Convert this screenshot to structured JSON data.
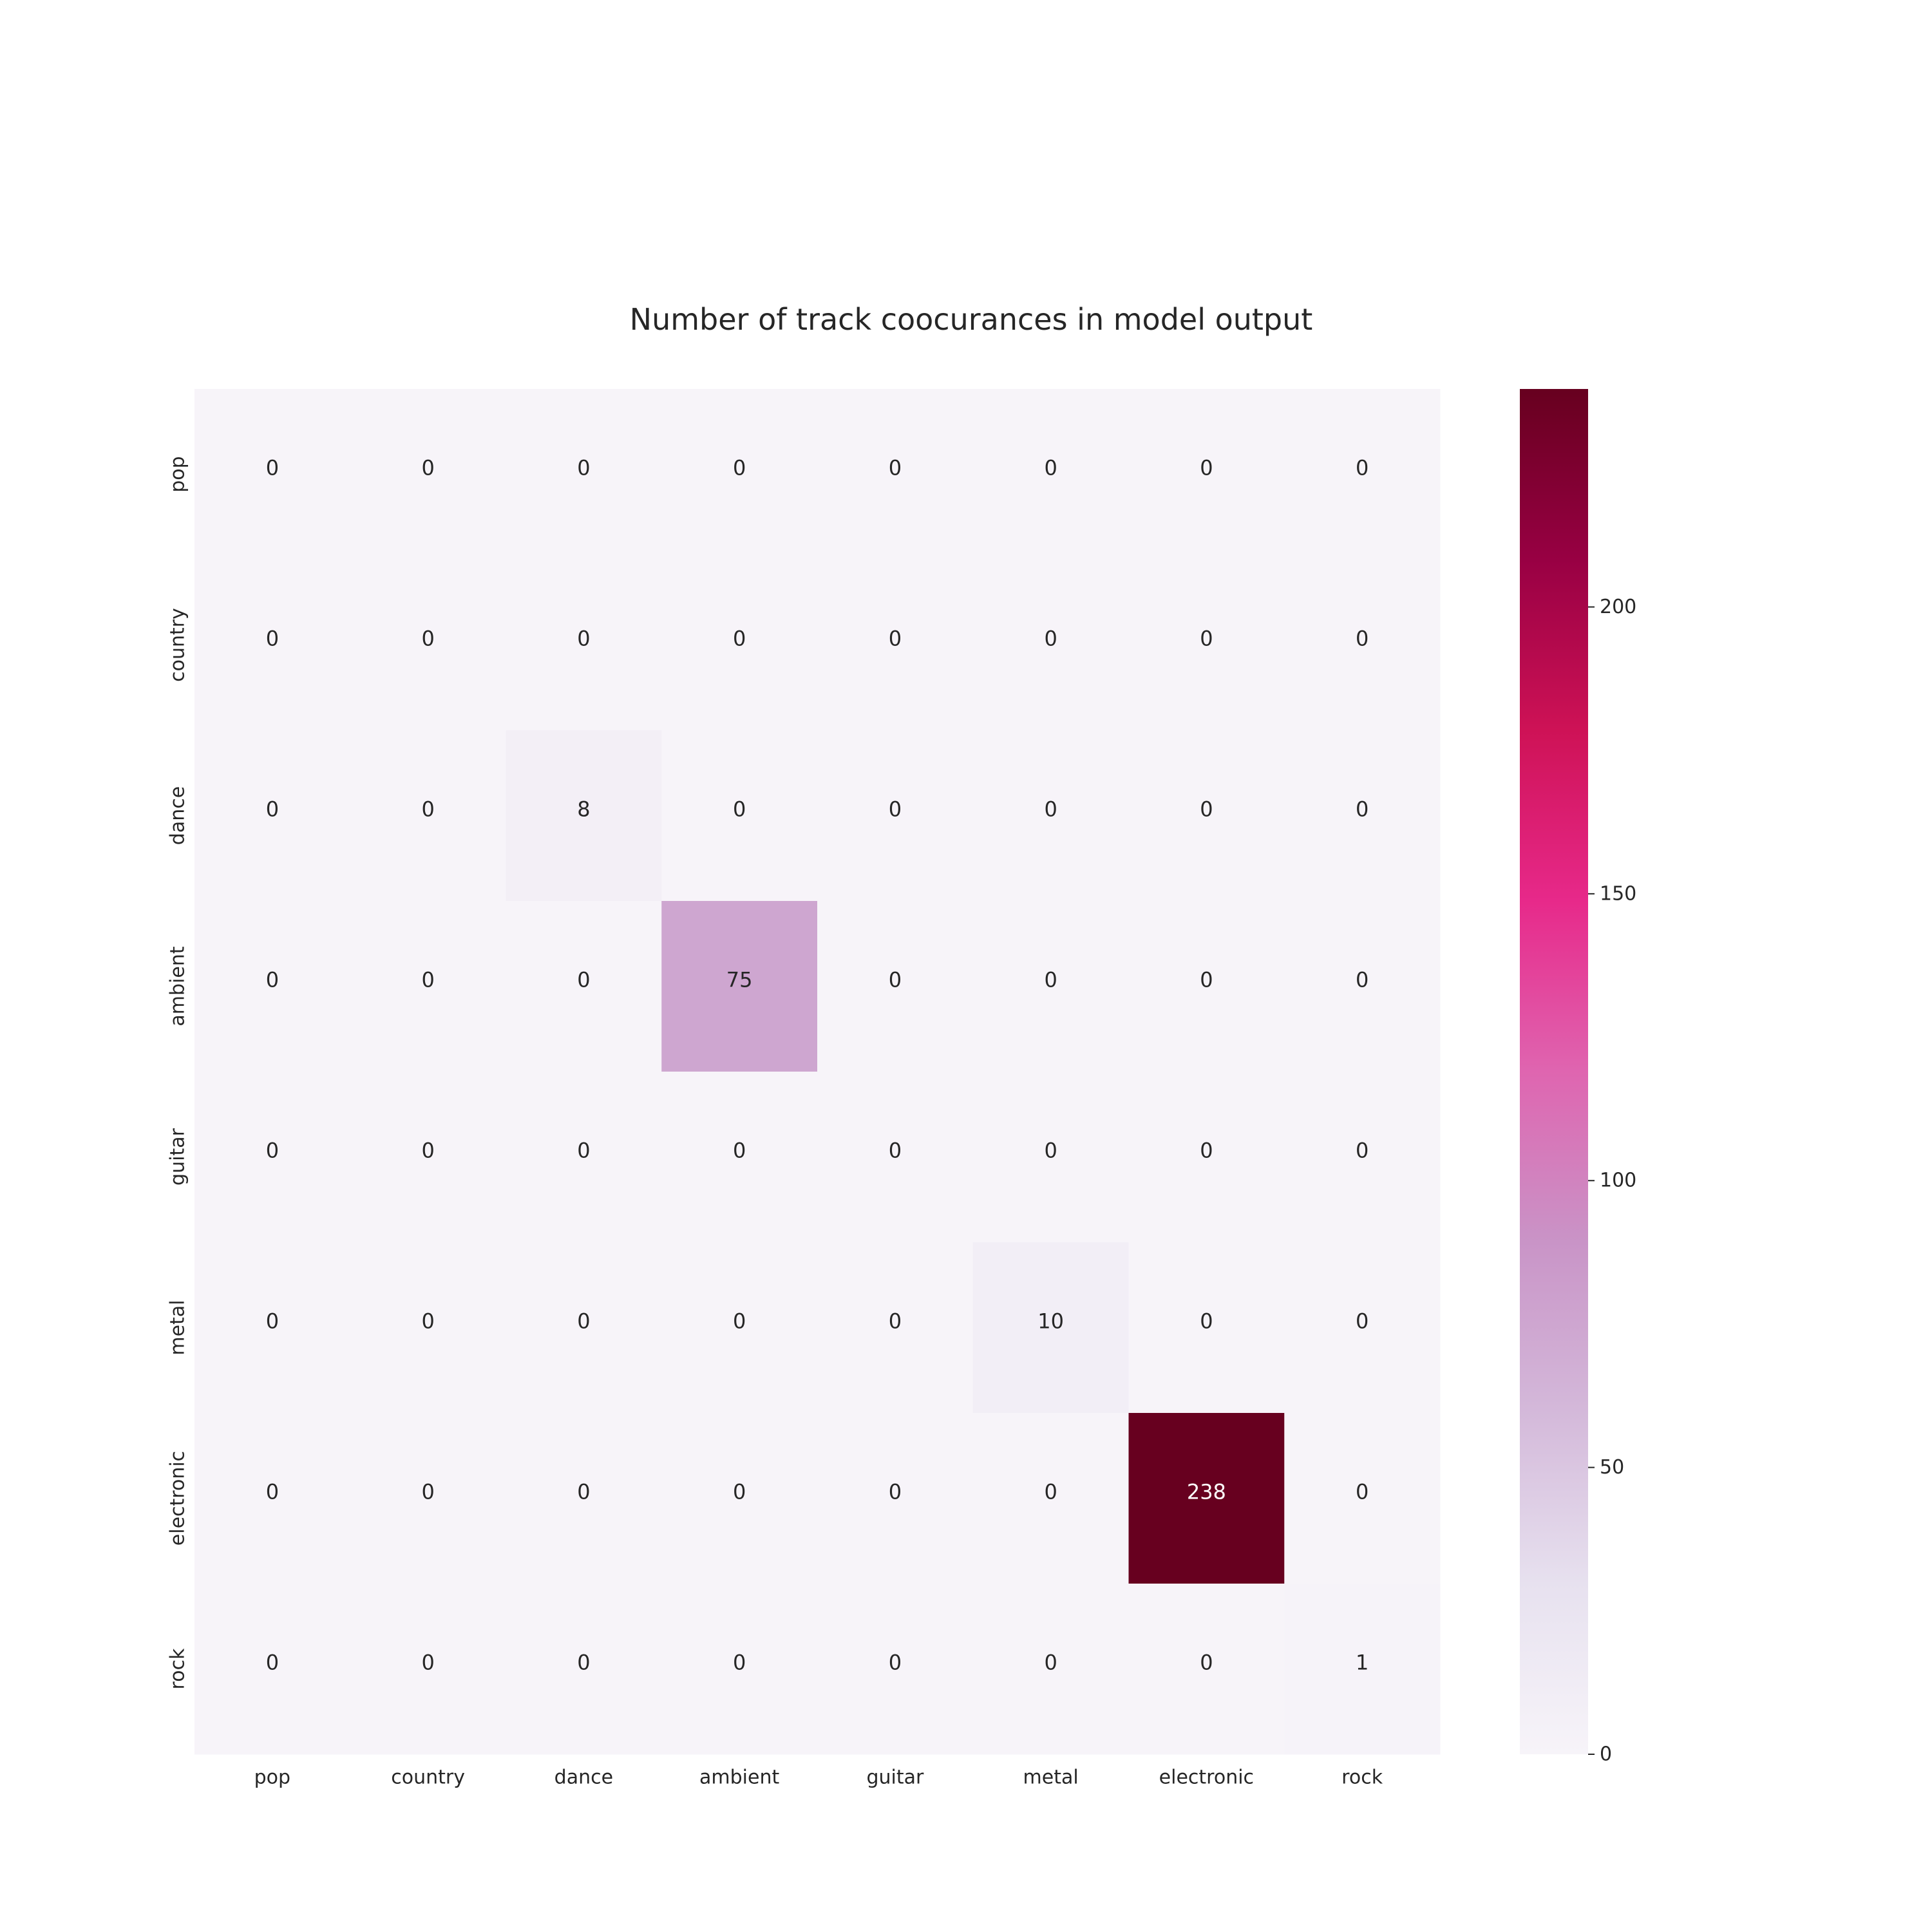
{
  "chart_data": {
    "type": "heatmap",
    "title": "Number of track coocurances in model output",
    "xlabel": "",
    "ylabel": "",
    "x_categories": [
      "pop",
      "country",
      "dance",
      "ambient",
      "guitar",
      "metal",
      "electronic",
      "rock"
    ],
    "y_categories": [
      "pop",
      "country",
      "dance",
      "ambient",
      "guitar",
      "metal",
      "electronic",
      "rock"
    ],
    "values": [
      [
        0,
        0,
        0,
        0,
        0,
        0,
        0,
        0
      ],
      [
        0,
        0,
        0,
        0,
        0,
        0,
        0,
        0
      ],
      [
        0,
        0,
        8,
        0,
        0,
        0,
        0,
        0
      ],
      [
        0,
        0,
        0,
        75,
        0,
        0,
        0,
        0
      ],
      [
        0,
        0,
        0,
        0,
        0,
        0,
        0,
        0
      ],
      [
        0,
        0,
        0,
        0,
        0,
        10,
        0,
        0
      ],
      [
        0,
        0,
        0,
        0,
        0,
        0,
        238,
        0
      ],
      [
        0,
        0,
        0,
        0,
        0,
        0,
        0,
        1
      ]
    ],
    "value_range": [
      0,
      238
    ],
    "colorbar": {
      "ticks": [
        0,
        50,
        100,
        150,
        200
      ],
      "colormap": "PuRd",
      "colors": [
        "#f7f4f9",
        "#e7e1ef",
        "#d4b9da",
        "#c994c7",
        "#df65b0",
        "#e7298a",
        "#ce1256",
        "#980043",
        "#67001f"
      ]
    },
    "annotations": true,
    "grid": false
  }
}
